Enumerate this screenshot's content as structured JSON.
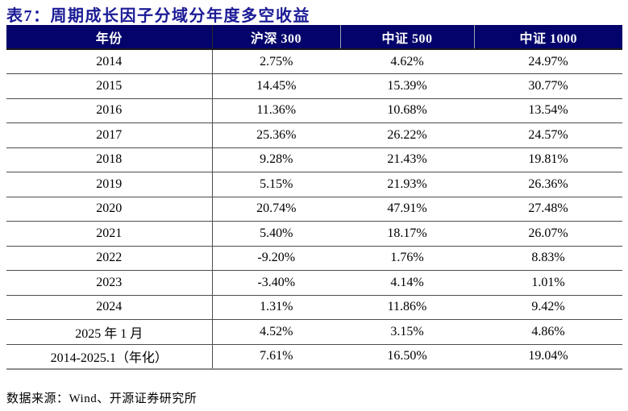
{
  "title": "表7：周期成长因子分域分年度多空收益",
  "table": {
    "columns": [
      "年份",
      "沪深 300",
      "中证 500",
      "中证 1000"
    ],
    "rows": [
      {
        "year": "2014",
        "hs300": "2.75%",
        "csi500": "4.62%",
        "csi1000": "24.97%"
      },
      {
        "year": "2015",
        "hs300": "14.45%",
        "csi500": "15.39%",
        "csi1000": "30.77%"
      },
      {
        "year": "2016",
        "hs300": "11.36%",
        "csi500": "10.68%",
        "csi1000": "13.54%"
      },
      {
        "year": "2017",
        "hs300": "25.36%",
        "csi500": "26.22%",
        "csi1000": "24.57%"
      },
      {
        "year": "2018",
        "hs300": "9.28%",
        "csi500": "21.43%",
        "csi1000": "19.81%"
      },
      {
        "year": "2019",
        "hs300": "5.15%",
        "csi500": "21.93%",
        "csi1000": "26.36%"
      },
      {
        "year": "2020",
        "hs300": "20.74%",
        "csi500": "47.91%",
        "csi1000": "27.48%"
      },
      {
        "year": "2021",
        "hs300": "5.40%",
        "csi500": "18.17%",
        "csi1000": "26.07%"
      },
      {
        "year": "2022",
        "hs300": "-9.20%",
        "csi500": "1.76%",
        "csi1000": "8.83%"
      },
      {
        "year": "2023",
        "hs300": "-3.40%",
        "csi500": "4.14%",
        "csi1000": "1.01%"
      },
      {
        "year": "2024",
        "hs300": "1.31%",
        "csi500": "11.86%",
        "csi1000": "9.42%"
      },
      {
        "year": "2025 年 1 月",
        "hs300": "4.52%",
        "csi500": "3.15%",
        "csi1000": "4.86%"
      },
      {
        "year": "2014-2025.1（年化）",
        "hs300": "7.61%",
        "csi500": "16.50%",
        "csi1000": "19.04%"
      }
    ]
  },
  "footer": {
    "source": "数据来源：Wind、开源证券研究所"
  },
  "colors": {
    "header_bg": "#03036b",
    "title_color": "#1b1b96",
    "row_border": "#4d4d4d",
    "text_color": "#000000"
  }
}
